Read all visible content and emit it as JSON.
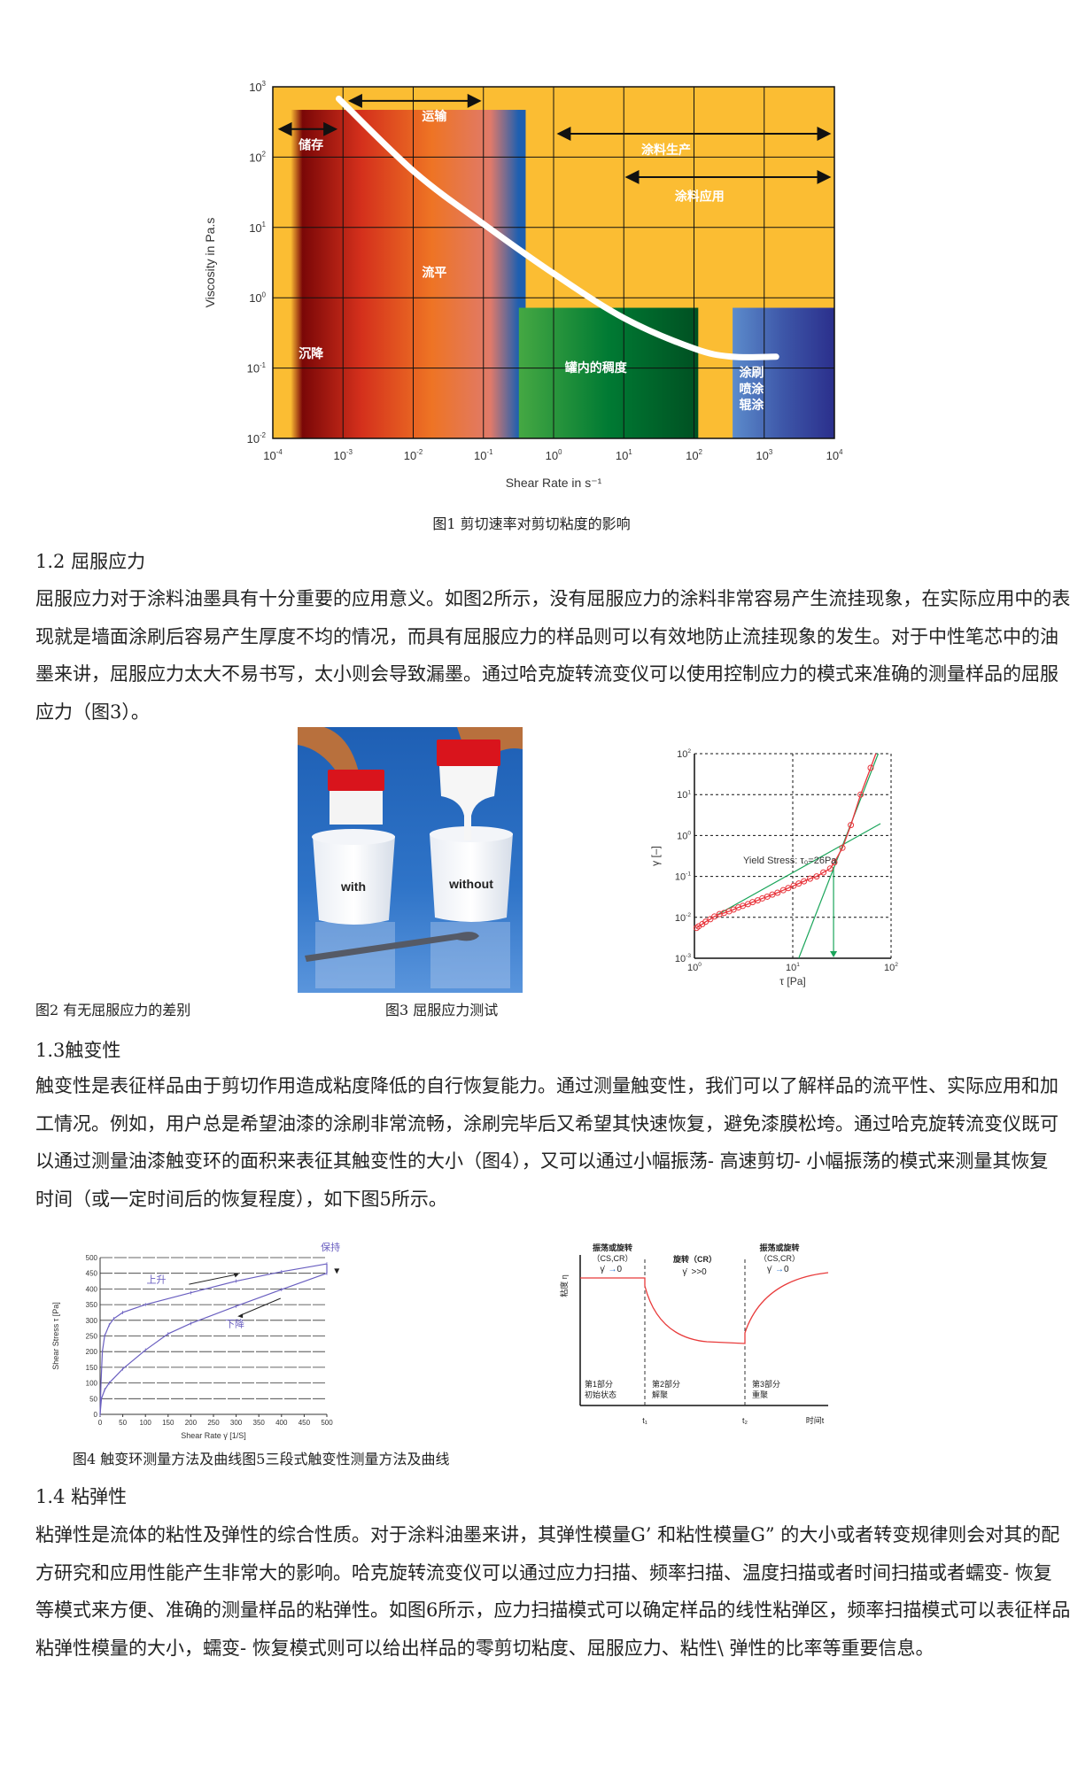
{
  "figures": {
    "fig1_caption": "图1 剪切速率对剪切粘度的影响",
    "fig2_caption": "图2 有无屈服应力的差别",
    "fig3_caption": "图3 屈服应力测试",
    "fig45_caption": "图4 触变环测量方法及曲线图5三段式触变性测量方法及曲线",
    "fig2_photo": {
      "label_left": "with",
      "label_right": "without"
    }
  },
  "sections": {
    "s12": {
      "heading": "1.2 屈服应力",
      "lines": [
        "屈服应力对于涂料油墨具有十分重要的应用意义。如图2所示，没有屈服应力的涂料非常容易产生流挂现象，在实际应用中的表",
        "现就是墙面涂刷后容易产生厚度不均的情况，而具有屈服应力的样品则可以有效地防止流挂现象的发生。对于中性笔芯中的油",
        "墨来讲，屈服应力太大不易书写，太小则会导致漏墨。通过哈克旋转流变仪可以使用控制应力的模式来准确的测量样品的屈服",
        "应力（图3）。"
      ]
    },
    "s13": {
      "heading": "1.3触变性",
      "lines": [
        "触变性是表征样品由于剪切作用造成粘度降低的自行恢复能力。通过测量触变性，我们可以了解样品的流平性、实际应用和加",
        "工情况。例如，用户总是希望油漆的涂刷非常流畅，涂刷完毕后又希望其快速恢复，避免漆膜松垮。通过哈克旋转流变仪既可",
        "以通过测量油漆触变环的面积来表征其触变性的大小（图4），又可以通过小幅振荡- 高速剪切- 小幅振荡的模式来测量其恢复",
        "时间（或一定时间后的恢复程度），如下图5所示。"
      ]
    },
    "s14": {
      "heading": "1.4 粘弹性",
      "lines": [
        "粘弹性是流体的粘性及弹性的综合性质。对于涂料油墨来讲，其弹性模量G’ 和粘性模量G” 的大小或者转变规律则会对其的配",
        "方研究和应用性能产生非常大的影响。哈克旋转流变仪可以通过应力扫描、频率扫描、温度扫描或者时间扫描或者蠕变- 恢复",
        "等模式来方便、准确的测量样品的粘弹性。如图6所示，应力扫描模式可以确定样品的线性粘弹区，频率扫描模式可以表征样品",
        "粘弹性模量的大小，蠕变- 恢复模式则可以给出样品的零剪切粘度、屈服应力、粘性\\ 弹性的比率等重要信息。"
      ]
    }
  },
  "chart_data": [
    {
      "id": "fig1",
      "type": "line",
      "xlabel": "Shear Rate in s⁻¹",
      "ylabel": "Viscosity in Pa.s",
      "x_scale": "log",
      "y_scale": "log",
      "xlim": [
        0.0001,
        10000
      ],
      "ylim": [
        0.01,
        1000
      ],
      "x_tick_exponents": [
        -4,
        -3,
        -2,
        -1,
        0,
        1,
        2,
        3,
        4
      ],
      "y_tick_exponents": [
        -2,
        -1,
        0,
        1,
        2,
        3
      ],
      "grid": true,
      "background": "#fbbd33",
      "curve_color": "#ffffff",
      "series": [
        {
          "x": [
            0.00087,
            0.0107,
            0.117,
            1.05,
            10.2,
            100,
            347,
            1480
          ],
          "y": [
            676,
            60,
            10,
            2.14,
            0.51,
            0.19,
            0.145,
            0.145
          ]
        }
      ],
      "regions": [
        {
          "label": "储存 / 沉降 / 流平 / 运输",
          "x": [
            0.00018,
            0.4
          ],
          "y": [
            0.01,
            470
          ],
          "colors": [
            "#7a0707",
            "#d4301c",
            "#ee7424",
            "#e07a6a",
            "#1e5fb0"
          ]
        },
        {
          "label": "罐内的稠度",
          "x": [
            0.32,
            115
          ],
          "y": [
            0.01,
            0.72
          ],
          "colors": [
            "#45a843",
            "#007a33",
            "#005022"
          ]
        },
        {
          "label": "涂刷 喷涂 辊涂",
          "x": [
            355,
            10000
          ],
          "y": [
            0.01,
            0.72
          ],
          "colors": [
            "#5c8ccc",
            "#3d56a8",
            "#2b2f8c"
          ]
        }
      ],
      "ranges": [
        {
          "label": "储存",
          "x": [
            0.000125,
            0.00079
          ],
          "y": 250
        },
        {
          "label": "运输",
          "x": [
            0.00125,
            0.089
          ],
          "y": 630
        },
        {
          "label": "涂料生产",
          "x": [
            1.17,
            8500
          ],
          "y": 215
        },
        {
          "label": "涂料应用",
          "x": [
            11,
            8500
          ],
          "y": 52
        }
      ],
      "annotations": [
        {
          "text": "储存",
          "x": 0.00035,
          "y": 130
        },
        {
          "text": "运输",
          "x": 0.02,
          "y": 330
        },
        {
          "text": "涂料生产",
          "x": 40,
          "y": 110
        },
        {
          "text": "涂料应用",
          "x": 120,
          "y": 24
        },
        {
          "text": "流平",
          "x": 0.02,
          "y": 2.0
        },
        {
          "text": "沉降",
          "x": 0.00035,
          "y": 0.14
        },
        {
          "text": "罐内的稠度",
          "x": 4,
          "y": 0.088
        },
        {
          "text": "涂刷",
          "x": 660,
          "y": 0.075
        },
        {
          "text": "喷涂",
          "x": 660,
          "y": 0.044
        },
        {
          "text": "辊涂",
          "x": 660,
          "y": 0.026
        }
      ]
    },
    {
      "id": "fig3",
      "type": "scatter",
      "xlabel": "τ [Pa]",
      "ylabel": "γ [–]",
      "x_scale": "log",
      "y_scale": "log",
      "xlim": [
        1,
        100
      ],
      "ylim": [
        0.001,
        100
      ],
      "x_tick_exponents": [
        0,
        1,
        2
      ],
      "y_tick_exponents": [
        -3,
        -2,
        -1,
        0,
        1,
        2
      ],
      "grid": "dashed",
      "annotation": "Yield Stress: τ₀=26Pa",
      "yield_stress": 26,
      "point_color": "#e8333a",
      "fit_color": "#1aa55a",
      "points": {
        "tau": [
          1.05,
          1.1,
          1.2,
          1.3,
          1.45,
          1.6,
          1.8,
          2.0,
          2.25,
          2.5,
          2.8,
          3.1,
          3.5,
          3.9,
          4.4,
          4.9,
          5.5,
          6.2,
          7,
          8,
          9,
          10.2,
          11.5,
          13,
          15,
          17.5,
          20.5,
          24,
          26.5,
          32,
          39,
          49,
          62
        ],
        "gamma": [
          0.0055,
          0.006,
          0.0068,
          0.0078,
          0.009,
          0.0105,
          0.012,
          0.0128,
          0.014,
          0.0155,
          0.0175,
          0.019,
          0.021,
          0.0235,
          0.026,
          0.029,
          0.032,
          0.036,
          0.04,
          0.046,
          0.052,
          0.059,
          0.067,
          0.076,
          0.088,
          0.1,
          0.125,
          0.155,
          0.22,
          0.5,
          1.8,
          10,
          45
        ]
      },
      "fit_lines": [
        {
          "tau": [
            1.7,
            78
          ],
          "gamma": [
            0.0115,
            1.95
          ]
        },
        {
          "tau": [
            11.5,
            74
          ],
          "gamma": [
            0.001,
            100
          ]
        }
      ]
    },
    {
      "id": "fig4",
      "type": "line",
      "xlabel": "Shear Rate γ̇ [1/S]",
      "ylabel": "Shear Stress τ [Pa]",
      "xlim": [
        0,
        500
      ],
      "ylim": [
        0,
        500
      ],
      "x_ticks": [
        0,
        50,
        100,
        150,
        200,
        250,
        300,
        350,
        400,
        450,
        500
      ],
      "y_ticks": [
        0,
        50,
        100,
        150,
        200,
        250,
        300,
        350,
        400,
        450,
        500
      ],
      "grid": "horizontal",
      "color": "#6a5fc0",
      "series": [
        {
          "name": "上升",
          "x": [
            0,
            2,
            5,
            10,
            20,
            30,
            50,
            100,
            200,
            300,
            400,
            500
          ],
          "y": [
            0,
            100,
            200,
            250,
            285,
            305,
            325,
            350,
            388,
            425,
            455,
            480
          ]
        },
        {
          "name": "保持",
          "x": [
            500,
            500
          ],
          "y": [
            480,
            450
          ]
        },
        {
          "name": "下降",
          "x": [
            500,
            400,
            300,
            200,
            150,
            100,
            50,
            20,
            10,
            3,
            0
          ],
          "y": [
            450,
            398,
            345,
            290,
            257,
            205,
            145,
            100,
            78,
            50,
            0
          ]
        }
      ],
      "labels": [
        {
          "text": "上升",
          "x": 124,
          "y": 420
        },
        {
          "text": "下降",
          "x": 297,
          "y": 278
        },
        {
          "text": "保持",
          "x": 508,
          "y": 523
        }
      ]
    },
    {
      "id": "fig5",
      "type": "line",
      "ylabel": "粘度 η",
      "xlabel": "时间t",
      "x_ticks": [
        "t₁",
        "t₂"
      ],
      "color": "#e83a3a",
      "phases": [
        {
          "mode": "振荡或旋转",
          "mode2": "（CS,CR）",
          "rate": "γ̇",
          "rate_arrow": "→",
          "rate_value": "0",
          "part": "第1部分",
          "state": "初始状态"
        },
        {
          "mode": "旋转（CR）",
          "mode2": "",
          "rate": "γ̇",
          "rate_arrow": "",
          "rate_value": ">>0",
          "part": "第2部分",
          "state": "解聚"
        },
        {
          "mode": "振荡或旋转",
          "mode2": "（CS,CR）",
          "rate": "γ̇",
          "rate_arrow": "→",
          "rate_value": "0",
          "part": "第3部分",
          "state": "重聚"
        }
      ]
    }
  ]
}
